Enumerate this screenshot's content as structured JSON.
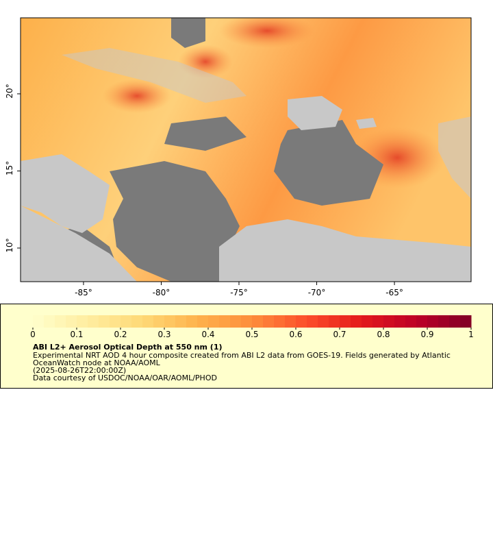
{
  "map": {
    "xlim": [
      -89.05,
      -60.07
    ],
    "ylim": [
      7.82,
      24.93
    ],
    "xticks": [
      {
        "value": -85,
        "label": "-85°"
      },
      {
        "value": -80,
        "label": "-80°"
      },
      {
        "value": -75,
        "label": "-75°"
      },
      {
        "value": -70,
        "label": "-70°"
      },
      {
        "value": -65,
        "label": "-65°"
      }
    ],
    "yticks": [
      {
        "value": 10,
        "label": "10°"
      },
      {
        "value": 15,
        "label": "15°"
      },
      {
        "value": 20,
        "label": "20°"
      }
    ]
  },
  "colorbar": {
    "range": [
      0,
      1
    ],
    "ticks": [
      0,
      0.1,
      0.2,
      0.3,
      0.4,
      0.5,
      0.6,
      0.7,
      0.8,
      0.9,
      1
    ],
    "colors": [
      "#ffffcc",
      "#ffeda0",
      "#fed976",
      "#feb24c",
      "#fd8d3c",
      "#fc4e2a",
      "#e31a1c",
      "#bd0026",
      "#800026"
    ]
  },
  "legend": {
    "title": "ABI L2+ Aerosol Optical Depth at 550 nm (1)",
    "lines": [
      "Experimental NRT AOD 4 hour composite created from ABI L2 data from GOES-19. Fields generated by Atlantic",
      "OceanWatch node at NOAA/AOML",
      "(2025-08-26T22:00:00Z)",
      "Data courtesy of USDOC/NOAA/OAR/AOML/PHOD"
    ]
  }
}
